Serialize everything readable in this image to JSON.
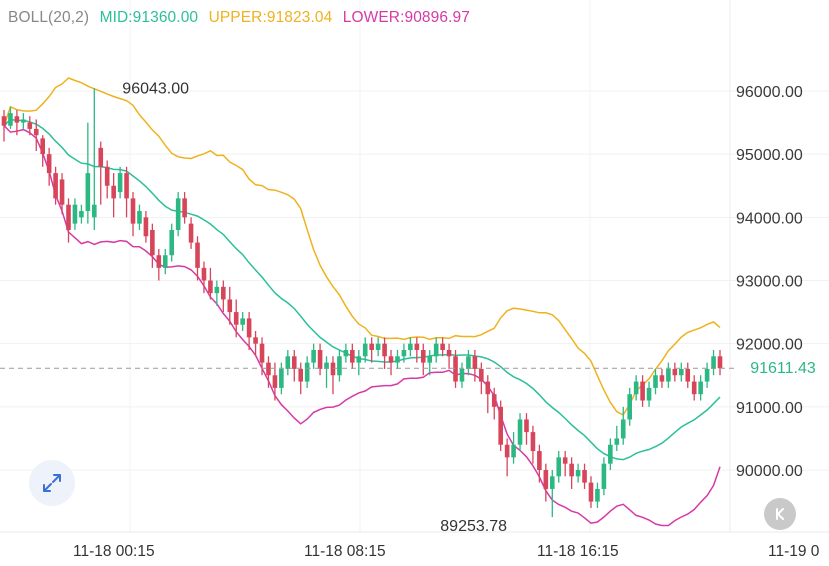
{
  "indicator": {
    "label": "BOLL(20,2)",
    "mid": "MID:91360.00",
    "upper": "UPPER:91823.04",
    "lower": "LOWER:90896.97"
  },
  "current_price_label": "91611.43",
  "colors": {
    "up": "#2bb883",
    "down": "#d7455b",
    "mid": "#2bbf9a",
    "upper": "#efb21f",
    "lower": "#d63aa6",
    "label": "#888888"
  },
  "icons": {
    "expand": "expand-arrows-icon",
    "back": "scroll-to-latest-icon"
  },
  "chart_data": {
    "type": "candlestick",
    "y_ticks": [
      "96000.00",
      "95000.00",
      "94000.00",
      "93000.00",
      "92000.00",
      "91000.00",
      "90000.00"
    ],
    "y_tick_values": [
      96000,
      95000,
      94000,
      93000,
      92000,
      91000,
      90000
    ],
    "x_ticks": [
      "11-18 00:15",
      "11-18 08:15",
      "11-18 16:15",
      "11-19 0"
    ],
    "high_annotation": {
      "label": "96043.00",
      "value": 96043
    },
    "low_annotation": {
      "label": "89253.78",
      "value": 89253.78
    },
    "current_price": 91611.43,
    "candles": [
      [
        95600,
        95450,
        95700,
        95200
      ],
      [
        95450,
        95650,
        95750,
        95400
      ],
      [
        95600,
        95500,
        95700,
        95300
      ],
      [
        95500,
        95550,
        95650,
        95400
      ],
      [
        95500,
        95400,
        95600,
        95300
      ],
      [
        95400,
        95300,
        95550,
        95050
      ],
      [
        95250,
        95000,
        95300,
        94800
      ],
      [
        95000,
        94700,
        95100,
        94500
      ],
      [
        94700,
        94300,
        94800,
        94200
      ],
      [
        94600,
        94200,
        94700,
        94050
      ],
      [
        94200,
        93800,
        94300,
        93600
      ],
      [
        93900,
        94200,
        94300,
        93800
      ],
      [
        94000,
        94100,
        94200,
        93900
      ],
      [
        94100,
        94700,
        95500,
        93900
      ],
      [
        94000,
        94200,
        96043,
        93800
      ],
      [
        95100,
        94800,
        95200,
        94200
      ],
      [
        94800,
        94500,
        94900,
        94300
      ],
      [
        94500,
        94300,
        94700,
        94000
      ],
      [
        94400,
        94700,
        94800,
        94300
      ],
      [
        94700,
        94300,
        94800,
        94000
      ],
      [
        94300,
        93900,
        94400,
        93700
      ],
      [
        93900,
        94100,
        94200,
        93800
      ],
      [
        94000,
        93700,
        94100,
        93600
      ],
      [
        93800,
        93400,
        93900,
        93200
      ],
      [
        93400,
        93200,
        93500,
        93000
      ],
      [
        93200,
        93400,
        93500,
        93100
      ],
      [
        93400,
        93800,
        93900,
        93300
      ],
      [
        93800,
        94300,
        94400,
        93700
      ],
      [
        94300,
        94000,
        94400,
        93900
      ],
      [
        93900,
        93600,
        94000,
        93500
      ],
      [
        93600,
        93200,
        93700,
        93000
      ],
      [
        93200,
        93000,
        93300,
        92800
      ],
      [
        93000,
        92800,
        93200,
        92700
      ],
      [
        92800,
        92900,
        93000,
        92600
      ],
      [
        92900,
        92700,
        93000,
        92500
      ],
      [
        92700,
        92500,
        92900,
        92300
      ],
      [
        92500,
        92300,
        92700,
        92100
      ],
      [
        92300,
        92400,
        92500,
        92200
      ],
      [
        92400,
        92100,
        92500,
        91900
      ],
      [
        92100,
        92000,
        92200,
        91800
      ],
      [
        92000,
        91700,
        92100,
        91500
      ],
      [
        91700,
        91500,
        91800,
        91300
      ],
      [
        91500,
        91300,
        91700,
        91100
      ],
      [
        91300,
        91600,
        91700,
        91200
      ],
      [
        91600,
        91800,
        91900,
        91500
      ],
      [
        91800,
        91600,
        91900,
        91400
      ],
      [
        91600,
        91400,
        91700,
        91200
      ],
      [
        91400,
        91700,
        91800,
        91300
      ],
      [
        91700,
        91900,
        92000,
        91600
      ],
      [
        91900,
        91600,
        92000,
        91500
      ],
      [
        91600,
        91700,
        91800,
        91300
      ],
      [
        91700,
        91500,
        91800,
        91200
      ],
      [
        91500,
        91800,
        91900,
        91400
      ],
      [
        91800,
        91900,
        92000,
        91700
      ],
      [
        91900,
        91700,
        92000,
        91600
      ],
      [
        91700,
        91800,
        91900,
        91500
      ],
      [
        91800,
        92000,
        92100,
        91700
      ],
      [
        92000,
        91900,
        92100,
        91700
      ],
      [
        91900,
        92000,
        92100,
        91800
      ],
      [
        92000,
        91800,
        92100,
        91600
      ],
      [
        91800,
        91700,
        91900,
        91500
      ],
      [
        91700,
        91800,
        91900,
        91600
      ],
      [
        91800,
        91900,
        92000,
        91700
      ],
      [
        91900,
        92000,
        92100,
        91800
      ],
      [
        92000,
        91900,
        92100,
        91700
      ],
      [
        91900,
        91700,
        92000,
        91500
      ],
      [
        91700,
        91800,
        91900,
        91500
      ],
      [
        91800,
        92000,
        92100,
        91700
      ],
      [
        92000,
        91900,
        92100,
        91800
      ],
      [
        91900,
        91800,
        92000,
        91600
      ],
      [
        91800,
        91400,
        91900,
        91300
      ],
      [
        91400,
        91600,
        91700,
        91300
      ],
      [
        91600,
        91800,
        91900,
        91500
      ],
      [
        91800,
        91600,
        91900,
        91400
      ],
      [
        91600,
        91400,
        91700,
        91200
      ],
      [
        91400,
        91200,
        91500,
        90900
      ],
      [
        91200,
        91000,
        91300,
        90800
      ],
      [
        91000,
        90400,
        91100,
        90300
      ],
      [
        90400,
        90200,
        90500,
        89900
      ],
      [
        90200,
        90400,
        90600,
        90100
      ],
      [
        90400,
        90800,
        90900,
        90300
      ],
      [
        90800,
        90600,
        90900,
        90400
      ],
      [
        90600,
        90300,
        90700,
        90100
      ],
      [
        90300,
        90000,
        90400,
        89800
      ],
      [
        90000,
        89700,
        90100,
        89500
      ],
      [
        89700,
        89900,
        90000,
        89254
      ],
      [
        89900,
        90200,
        90300,
        89800
      ],
      [
        90200,
        90100,
        90300,
        89900
      ],
      [
        90100,
        89900,
        90200,
        89700
      ],
      [
        89900,
        90000,
        90100,
        89800
      ],
      [
        90000,
        89800,
        90100,
        89700
      ],
      [
        89800,
        89500,
        89900,
        89400
      ],
      [
        89500,
        89700,
        89800,
        89400
      ],
      [
        89700,
        90100,
        90200,
        89600
      ],
      [
        90100,
        90400,
        90500,
        90000
      ],
      [
        90400,
        90500,
        90700,
        90300
      ],
      [
        90500,
        90800,
        91000,
        90400
      ],
      [
        90800,
        91200,
        91300,
        90700
      ],
      [
        91200,
        91400,
        91500,
        91100
      ],
      [
        91400,
        91100,
        91500,
        91000
      ],
      [
        91100,
        91300,
        91400,
        91000
      ],
      [
        91300,
        91500,
        91600,
        91200
      ],
      [
        91500,
        91400,
        91600,
        91300
      ],
      [
        91400,
        91600,
        91700,
        91300
      ],
      [
        91600,
        91500,
        91700,
        91400
      ],
      [
        91500,
        91600,
        91700,
        91400
      ],
      [
        91600,
        91400,
        91700,
        91300
      ],
      [
        91400,
        91200,
        91500,
        91100
      ],
      [
        91200,
        91400,
        91500,
        91100
      ],
      [
        91400,
        91600,
        91700,
        91300
      ],
      [
        91600,
        91800,
        91900,
        91500
      ],
      [
        91800,
        91611,
        91900,
        91500
      ]
    ]
  }
}
